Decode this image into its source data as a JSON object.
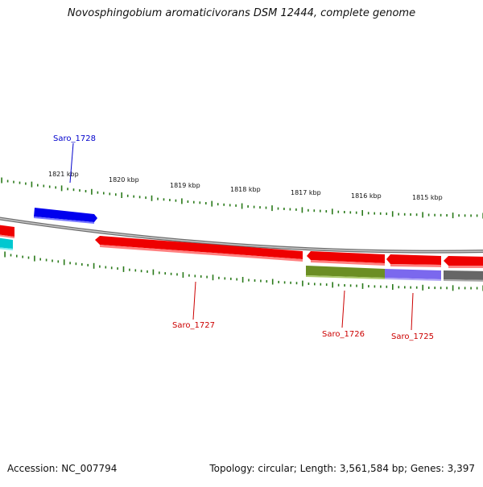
{
  "header": {
    "title": "Novosphingobium aromaticivorans DSM 12444, complete genome"
  },
  "footer": {
    "accession": "Accession: NC_007794",
    "summary": "Topology: circular; Length: 3,561,584 bp; Genes: 3,397"
  },
  "ruler": {
    "labels": [
      "1821 kbp",
      "1820 kbp",
      "1819 kbp",
      "1818 kbp",
      "1817 kbp",
      "1816 kbp",
      "1815 kbp"
    ]
  },
  "genes": [
    {
      "name": "Saro_1728",
      "strand": "+",
      "color": "#0000dd"
    },
    {
      "name": "Saro_1727",
      "strand": "-",
      "color": "#dd0000"
    },
    {
      "name": "Saro_1726",
      "strand": "-",
      "color": "#dd0000"
    },
    {
      "name": "Saro_1725",
      "strand": "-",
      "color": "#dd0000"
    }
  ],
  "colors": {
    "backbone": "#888888",
    "tick": "#2a7a1a",
    "forward_gene": "#0000ee",
    "reverse_gene": "#ee0000",
    "feature_olive": "#6b8e23",
    "feature_purple": "#7b68ee",
    "feature_gray": "#666666",
    "feature_cyan": "#00c8d0",
    "gene_label": "#cc0000",
    "gene_label_forward": "#0000cc"
  }
}
